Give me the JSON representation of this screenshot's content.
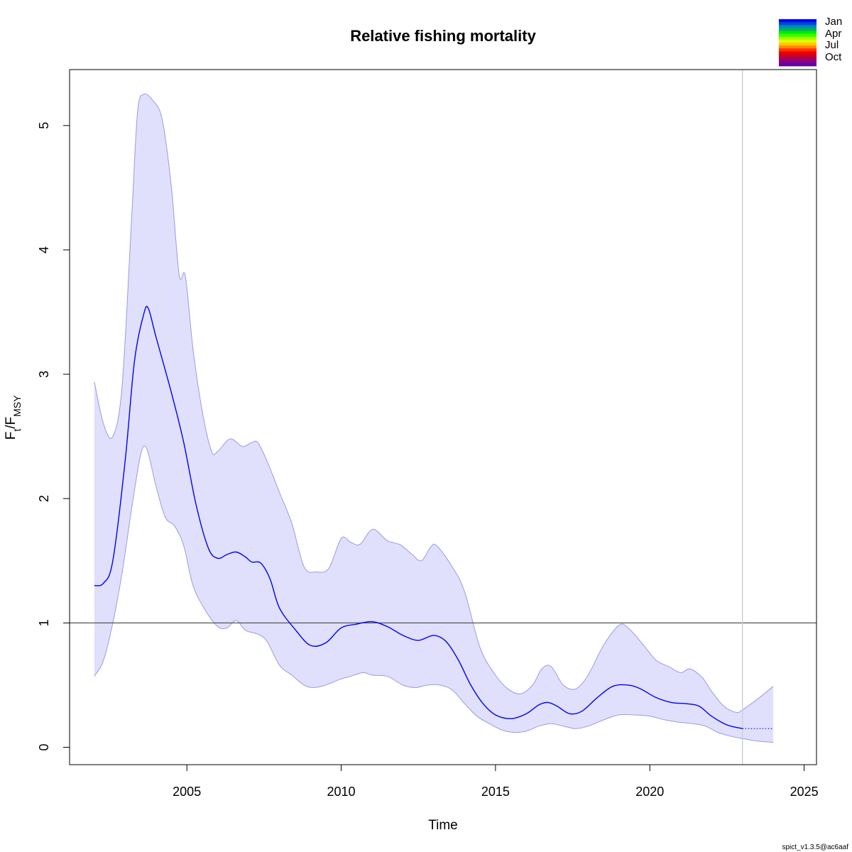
{
  "chart_data": {
    "type": "line",
    "title": "Relative fishing mortality",
    "xlabel": "Time",
    "ylabel": {
      "main": "F",
      "sub1": "t",
      "sep": "/F",
      "sub2": "MSY"
    },
    "xlim": [
      2001.2,
      2025.4
    ],
    "ylim": [
      -0.14,
      5.45
    ],
    "x_ticks": [
      2005,
      2010,
      2015,
      2020,
      2025
    ],
    "x_tick_labels": [
      "2005",
      "2010",
      "2015",
      "2020",
      "2025"
    ],
    "y_ticks": [
      0,
      1,
      2,
      3,
      4,
      5
    ],
    "y_tick_labels": [
      "0",
      "1",
      "2",
      "3",
      "4",
      "5"
    ],
    "reference_line_y": 1,
    "vertical_line_x": 2023,
    "grid": false,
    "colors": {
      "estimate": "#0000ff",
      "ci_fill": "#e0e0fc",
      "ci_edge": "#9a9ae6",
      "reference": "#555555",
      "vline": "#cccccc"
    },
    "series": [
      {
        "role": "estimate",
        "x": [
          2002.0,
          2002.3,
          2002.6,
          2003.0,
          2003.3,
          2003.6,
          2003.75,
          2004.0,
          2004.5,
          2004.9,
          2005.3,
          2005.7,
          2006.0,
          2006.3,
          2006.6,
          2006.9,
          2007.1,
          2007.4,
          2007.7,
          2008.0,
          2008.5,
          2009.0,
          2009.5,
          2010.0,
          2010.5,
          2011.0,
          2011.5,
          2012.0,
          2012.5,
          2013.0,
          2013.4,
          2013.8,
          2014.2,
          2014.6,
          2015.0,
          2015.5,
          2016.0,
          2016.4,
          2016.7,
          2017.0,
          2017.4,
          2017.8,
          2018.3,
          2018.8,
          2019.3,
          2019.7,
          2020.2,
          2020.7,
          2021.2,
          2021.6,
          2022.0,
          2022.5,
          2023.0
        ],
        "y": [
          1.3,
          1.32,
          1.5,
          2.3,
          3.1,
          3.48,
          3.53,
          3.3,
          2.85,
          2.45,
          1.95,
          1.6,
          1.52,
          1.55,
          1.57,
          1.53,
          1.49,
          1.48,
          1.35,
          1.12,
          0.95,
          0.82,
          0.84,
          0.96,
          0.99,
          1.01,
          0.97,
          0.9,
          0.86,
          0.9,
          0.85,
          0.7,
          0.5,
          0.35,
          0.26,
          0.23,
          0.27,
          0.34,
          0.36,
          0.33,
          0.27,
          0.29,
          0.4,
          0.49,
          0.5,
          0.47,
          0.4,
          0.36,
          0.35,
          0.33,
          0.25,
          0.18,
          0.15
        ]
      },
      {
        "role": "prediction",
        "x": [
          2023.0,
          2024.0
        ],
        "y": [
          0.15,
          0.15
        ]
      },
      {
        "role": "ci_upper",
        "x": [
          2002.0,
          2002.3,
          2002.6,
          2002.9,
          2003.2,
          2003.4,
          2003.6,
          2003.9,
          2004.2,
          2004.5,
          2004.75,
          2004.95,
          2005.2,
          2005.5,
          2005.8,
          2006.0,
          2006.4,
          2006.8,
          2007.1,
          2007.3,
          2007.6,
          2008.0,
          2008.4,
          2008.8,
          2009.2,
          2009.6,
          2010.0,
          2010.3,
          2010.6,
          2010.9,
          2011.1,
          2011.5,
          2011.9,
          2012.3,
          2012.6,
          2012.9,
          2013.1,
          2013.6,
          2014.0,
          2014.5,
          2015.0,
          2015.4,
          2015.8,
          2016.2,
          2016.5,
          2016.8,
          2017.2,
          2017.6,
          2018.0,
          2018.5,
          2019.0,
          2019.3,
          2019.8,
          2020.2,
          2020.6,
          2021.0,
          2021.3,
          2021.7,
          2022.0,
          2022.4,
          2022.8,
          2023.0,
          2023.5,
          2024.0
        ],
        "y": [
          2.94,
          2.6,
          2.5,
          2.9,
          4.2,
          5.1,
          5.25,
          5.2,
          5.05,
          4.5,
          3.8,
          3.79,
          3.2,
          2.7,
          2.38,
          2.38,
          2.48,
          2.42,
          2.45,
          2.45,
          2.3,
          2.05,
          1.8,
          1.45,
          1.41,
          1.44,
          1.68,
          1.65,
          1.63,
          1.73,
          1.75,
          1.66,
          1.63,
          1.55,
          1.5,
          1.61,
          1.62,
          1.45,
          1.25,
          0.8,
          0.58,
          0.47,
          0.43,
          0.5,
          0.63,
          0.65,
          0.5,
          0.47,
          0.58,
          0.82,
          0.98,
          0.96,
          0.82,
          0.7,
          0.65,
          0.6,
          0.63,
          0.56,
          0.45,
          0.33,
          0.28,
          0.3,
          0.39,
          0.49
        ]
      },
      {
        "role": "ci_lower",
        "x": [
          2002.0,
          2002.3,
          2002.6,
          2002.9,
          2003.2,
          2003.5,
          2003.7,
          2004.0,
          2004.3,
          2004.6,
          2004.9,
          2005.2,
          2005.6,
          2006.0,
          2006.3,
          2006.6,
          2006.9,
          2007.3,
          2007.6,
          2008.0,
          2008.4,
          2008.8,
          2009.1,
          2009.5,
          2010.0,
          2010.3,
          2010.7,
          2011.0,
          2011.5,
          2012.0,
          2012.4,
          2012.8,
          2013.2,
          2013.6,
          2014.0,
          2014.4,
          2014.8,
          2015.2,
          2015.6,
          2016.0,
          2016.4,
          2016.8,
          2017.2,
          2017.6,
          2018.0,
          2018.5,
          2019.0,
          2019.5,
          2020.0,
          2020.5,
          2021.0,
          2021.4,
          2021.8,
          2022.2,
          2022.6,
          2023.0,
          2023.5,
          2024.0
        ],
        "y": [
          0.57,
          0.7,
          1.0,
          1.4,
          1.9,
          2.35,
          2.4,
          2.1,
          1.85,
          1.78,
          1.62,
          1.3,
          1.1,
          0.97,
          0.96,
          1.02,
          0.94,
          0.91,
          0.85,
          0.66,
          0.58,
          0.5,
          0.48,
          0.5,
          0.55,
          0.57,
          0.6,
          0.58,
          0.57,
          0.5,
          0.48,
          0.5,
          0.5,
          0.46,
          0.35,
          0.25,
          0.19,
          0.14,
          0.12,
          0.13,
          0.17,
          0.19,
          0.17,
          0.15,
          0.17,
          0.22,
          0.26,
          0.26,
          0.25,
          0.22,
          0.2,
          0.19,
          0.17,
          0.12,
          0.09,
          0.07,
          0.05,
          0.04
        ]
      }
    ],
    "legend": {
      "position": "top-right",
      "labels": [
        "Jan",
        "Apr",
        "Jul",
        "Oct"
      ],
      "colors": [
        "#0000ff",
        "#0044dd",
        "#0088bb",
        "#00aa77",
        "#00ee00",
        "#33ff00",
        "#99ff00",
        "#ddff00",
        "#ffcc00",
        "#ff8800",
        "#ff3300",
        "#ee0000",
        "#cc0022",
        "#aa0055",
        "#880088",
        "#6600aa"
      ]
    }
  },
  "footer_text": "spict_v1.3.5@ac6aaf"
}
